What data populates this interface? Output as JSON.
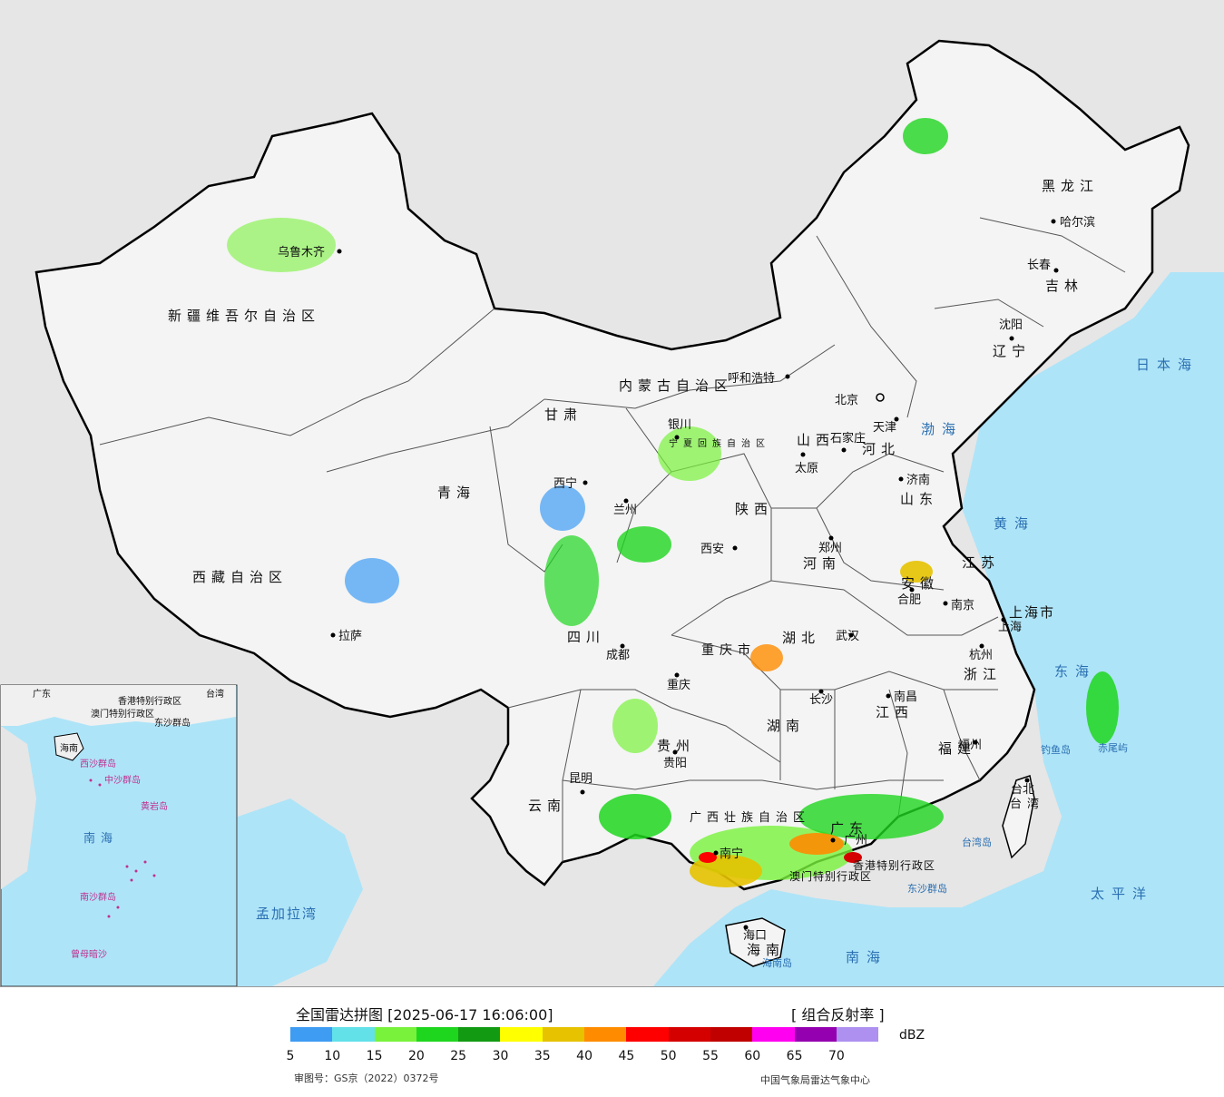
{
  "map": {
    "provinces": [
      "新疆维吾尔自治区",
      "西藏自治区",
      "青海",
      "甘肃",
      "内蒙古自治区",
      "黑龙江",
      "吉林",
      "辽宁",
      "河北",
      "山西",
      "山东",
      "河南",
      "陕西",
      "宁夏回族自治区",
      "四川",
      "重庆市",
      "湖北",
      "湖南",
      "贵州",
      "云南",
      "广西壮族自治区",
      "广东",
      "江西",
      "福建",
      "浙江",
      "安徽",
      "江苏",
      "上海市",
      "台湾",
      "海南",
      "香港特别行政区",
      "澳门特别行政区"
    ],
    "cities": [
      "乌鲁木齐",
      "拉萨",
      "西宁",
      "兰州",
      "银川",
      "呼和浩特",
      "北京",
      "天津",
      "石家庄",
      "太原",
      "济南",
      "郑州",
      "西安",
      "成都",
      "重庆",
      "武汉",
      "合肥",
      "南京",
      "上海",
      "杭州",
      "长沙",
      "南昌",
      "福州",
      "贵阳",
      "昆明",
      "南宁",
      "广州",
      "海口",
      "台北",
      "哈尔滨",
      "长春",
      "沈阳"
    ],
    "seas": [
      "日本海",
      "渤海",
      "黄海",
      "东海",
      "太平洋",
      "南海",
      "孟加拉湾",
      "台湾岛",
      "钓鱼岛",
      "赤尾屿",
      "东沙群岛",
      "海南岛"
    ],
    "inset_labels": [
      "广东",
      "香港特别行政区",
      "澳门特别行政区",
      "东沙群岛",
      "海南",
      "西沙群岛",
      "中沙群岛",
      "黄岩岛",
      "南海",
      "南沙群岛",
      "曾母暗沙",
      "台湾"
    ]
  },
  "legend": {
    "title": "全国雷达拼图 [2025-06-17 16:06:00]",
    "product": "[ 组合反射率 ]",
    "unit": "dBZ",
    "colors": [
      "#3e9cf3",
      "#62e1e8",
      "#79f23c",
      "#1fd61f",
      "#139a13",
      "#ffff00",
      "#e6c200",
      "#ff8c00",
      "#ff0000",
      "#d40000",
      "#c00000",
      "#ff00f0",
      "#9400b0",
      "#ad90f0"
    ],
    "ticks": [
      "5",
      "10",
      "15",
      "20",
      "25",
      "30",
      "35",
      "40",
      "45",
      "50",
      "55",
      "60",
      "65",
      "70"
    ],
    "review_number": "审图号：GS京（2022）0372号",
    "organization": "中国气象局雷达气象中心"
  }
}
